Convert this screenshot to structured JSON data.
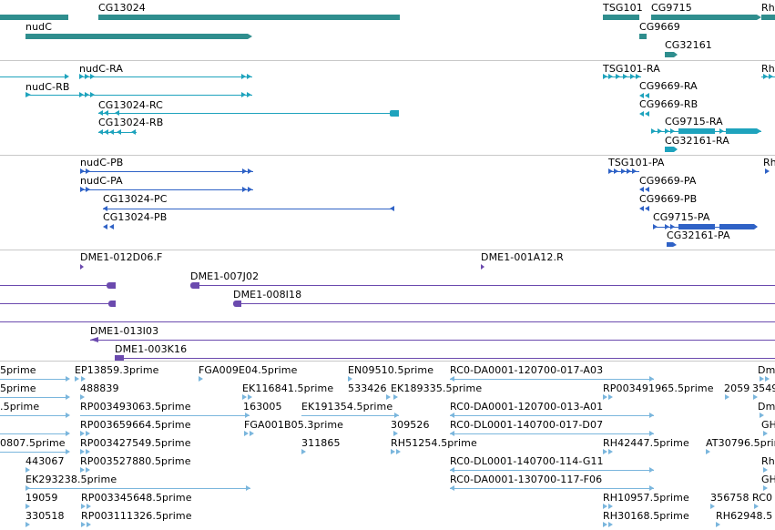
{
  "colors": {
    "gene": "#2f8e8e",
    "transcript": "#1ea3bd",
    "protein": "#2f62c6",
    "clone": "#6b4aae",
    "est": "#7ab6dd",
    "separator": "#c8c8c8"
  },
  "tracks": {
    "genes": {
      "labels": [
        "CG13024",
        "nudC",
        "TSG101",
        "CG9715",
        "Rh",
        "CG9669",
        "CG32161"
      ]
    },
    "transcripts": {
      "labels": [
        "nudC-RA",
        "nudC-RB",
        "CG13024-RC",
        "CG13024-RB",
        "TSG101-RA",
        "Rh",
        "CG9669-RA",
        "CG9669-RB",
        "CG9715-RA",
        "CG32161-RA"
      ]
    },
    "proteins": {
      "labels": [
        "nudC-PB",
        "nudC-PA",
        "CG13024-PC",
        "CG13024-PB",
        "TSG101-PA",
        "Rh",
        "CG9669-PA",
        "CG9669-PB",
        "CG9715-PA",
        "CG32161-PA"
      ]
    },
    "clones": {
      "labels": [
        "DME1-012D06.F",
        "DME1-001A12.R",
        "DME1-007J02",
        "DME1-008I18",
        "DME1-013I03",
        "DME1-003K16"
      ]
    },
    "ests": {
      "labels": [
        "5prime",
        "EP13859.3prime",
        "FGA009E04.5prime",
        "EN09510.5prime",
        "RC0-DA0001-120700-017-A03",
        "Dm",
        "5prime",
        "488839",
        "EK116841.5prime",
        "533426",
        "EK189335.5prime",
        "RP003491965.5prime",
        "2059",
        "3549",
        ".5prime",
        "RP003493063.5prime",
        "163005",
        "EK191354.5prime",
        "RC0-DA0001-120700-013-A01",
        "Dm",
        "RP003659664.5prime",
        "FGA001B05.3prime",
        "309526",
        "RC0-DL0001-140700-017-D07",
        "GH",
        "0807.5prime",
        "RP003427549.5prime",
        "311865",
        "RH51254.5prime",
        "RH42447.5prime",
        "AT30796.5prime",
        "443067",
        "RP003527880.5prime",
        "RC0-DL0001-140700-114-G11",
        "Rh",
        "EK293238.5prime",
        "RC0-DA0001-130700-117-F06",
        "GH",
        "19059",
        "RP003345648.5prime",
        "RH10957.5prime",
        "356758",
        "RC0",
        "330518",
        "RP003111326.5prime",
        "RH30168.5prime",
        "RH62948.5"
      ]
    }
  }
}
